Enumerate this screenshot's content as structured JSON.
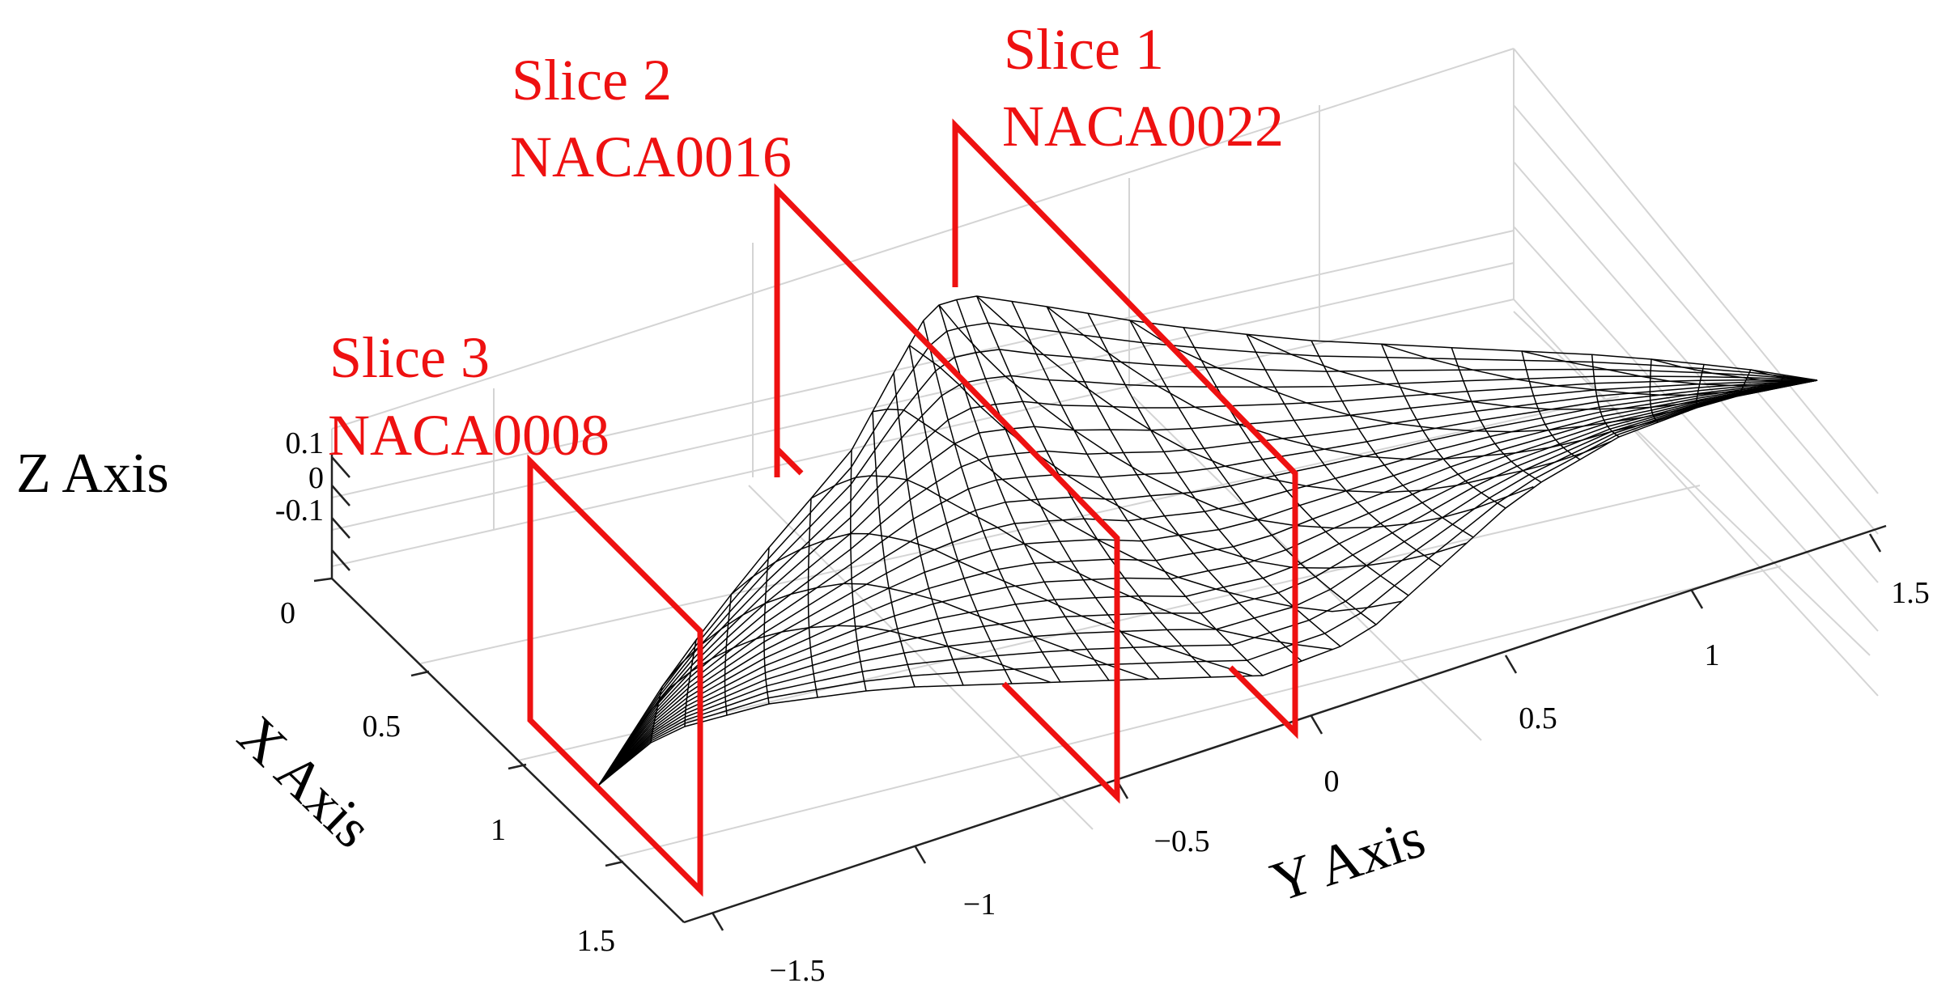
{
  "colors": {
    "slice_red": "#ee1111",
    "mesh": "#000000",
    "grid": "#d4d4d4",
    "axis": "#222222"
  },
  "axes": {
    "x_label": "X Axis",
    "y_label": "Y Axis",
    "z_label": "Z Axis",
    "x_ticks": [
      "0",
      "0.5",
      "1",
      "1.5"
    ],
    "y_ticks": [
      "−1.5",
      "−1",
      "−0.5",
      "0",
      "0.5",
      "1",
      "1.5"
    ],
    "z_ticks": [
      "0.1",
      "0",
      "-0.1"
    ]
  },
  "slices": [
    {
      "title": "Slice 1",
      "airfoil": "NACA0022"
    },
    {
      "title": "Slice 2",
      "airfoil": "NACA0016"
    },
    {
      "title": "Slice 3",
      "airfoil": "NACA0008"
    }
  ]
}
